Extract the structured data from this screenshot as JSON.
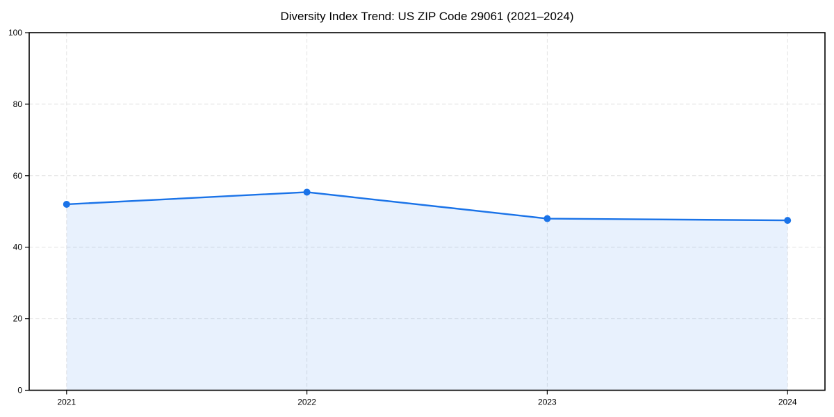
{
  "figure": {
    "background": "#ffffff"
  },
  "chart_data": {
    "type": "area",
    "title": "Diversity Index Trend: US ZIP Code 29061 (2021–2024)",
    "categories": [
      "2021",
      "2022",
      "2023",
      "2024"
    ],
    "series": [
      {
        "name": "Diversity Index",
        "values": [
          52.0,
          55.4,
          48.0,
          47.5
        ]
      }
    ],
    "xlabel": "",
    "ylabel": "",
    "ylim": [
      0,
      100
    ],
    "yticks": [
      0,
      20,
      40,
      60,
      80,
      100
    ],
    "grid": true,
    "grid_style": "dashed",
    "legend_position": "none",
    "marker": "circle",
    "colors": {
      "line": "#1a73e8",
      "fill": "rgba(26,115,232,0.10)",
      "grid": "#e2e2e2",
      "axis": "#000000",
      "text": "#000000"
    }
  }
}
